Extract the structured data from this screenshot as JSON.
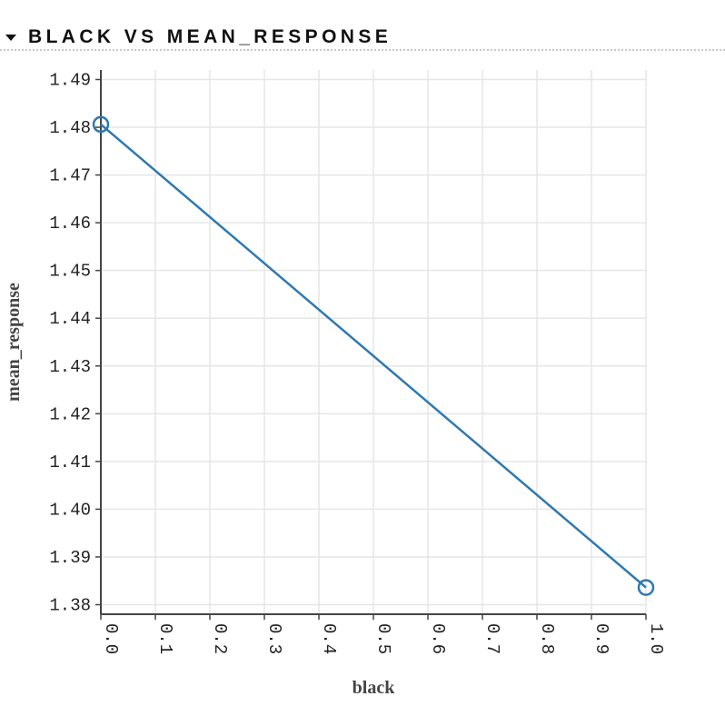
{
  "section": {
    "title": "BLACK VS MEAN_RESPONSE",
    "toggle_icon": "caret-down-icon"
  },
  "chart_data": {
    "type": "line",
    "title": "",
    "xlabel": "black",
    "ylabel": "mean_response",
    "x": [
      0.0,
      1.0
    ],
    "series": [
      {
        "values": [
          1.4806,
          1.3836
        ]
      }
    ],
    "xlim": [
      0.0,
      1.0
    ],
    "ylim": [
      1.378,
      1.492
    ],
    "xticks": [
      "0.0",
      "0.1",
      "0.2",
      "0.3",
      "0.4",
      "0.5",
      "0.6",
      "0.7",
      "0.8",
      "0.9",
      "1.0"
    ],
    "yticks": [
      "1.38",
      "1.39",
      "1.40",
      "1.41",
      "1.42",
      "1.43",
      "1.44",
      "1.45",
      "1.46",
      "1.47",
      "1.48",
      "1.49"
    ],
    "markers": "open-circle",
    "grid": true,
    "color": "#2e78b0"
  }
}
